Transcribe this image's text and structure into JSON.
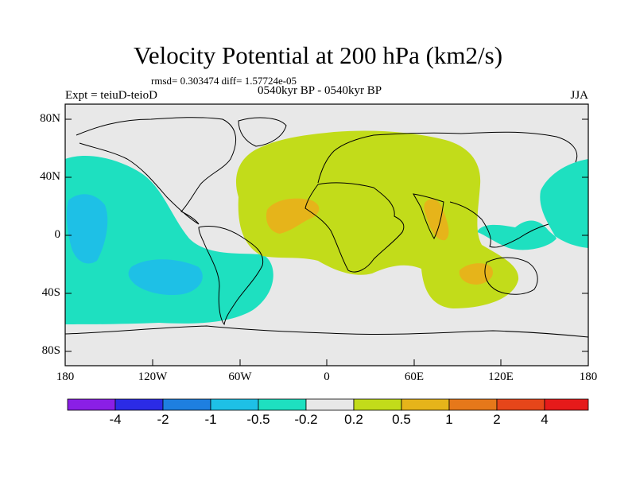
{
  "title": "Velocity Potential at 200 hPa (km2/s)",
  "stats": "rmsd= 0.303474  diff= 1.57724e-05",
  "experiment": "Expt = teiuD-teioD",
  "period": "0540kyr BP - 0540kyr BP",
  "season": "JJA",
  "lat_labels": [
    "80N",
    "40N",
    "0",
    "40S",
    "80S"
  ],
  "lon_labels": [
    "180",
    "120W",
    "60W",
    "0",
    "60E",
    "120E",
    "180"
  ],
  "colorbar": {
    "labels": [
      "-4",
      "-2",
      "-1",
      "-0.5",
      "-0.2",
      "0.2",
      "0.5",
      "1",
      "2",
      "4"
    ],
    "colors": [
      "#8a1fe6",
      "#2b2be6",
      "#1e7fe0",
      "#1ec0e6",
      "#1ee0c0",
      "#e8e8e8",
      "#c2dc1a",
      "#e6b41a",
      "#e6781a",
      "#e6461a",
      "#e61a1a"
    ]
  },
  "map_colors": {
    "background": "#e8e8e8",
    "neg_02_05": "#1ee0c0",
    "neg_05_1": "#1ec0e6",
    "pos_02_05": "#c2dc1a",
    "pos_05_1": "#e6b41a"
  }
}
